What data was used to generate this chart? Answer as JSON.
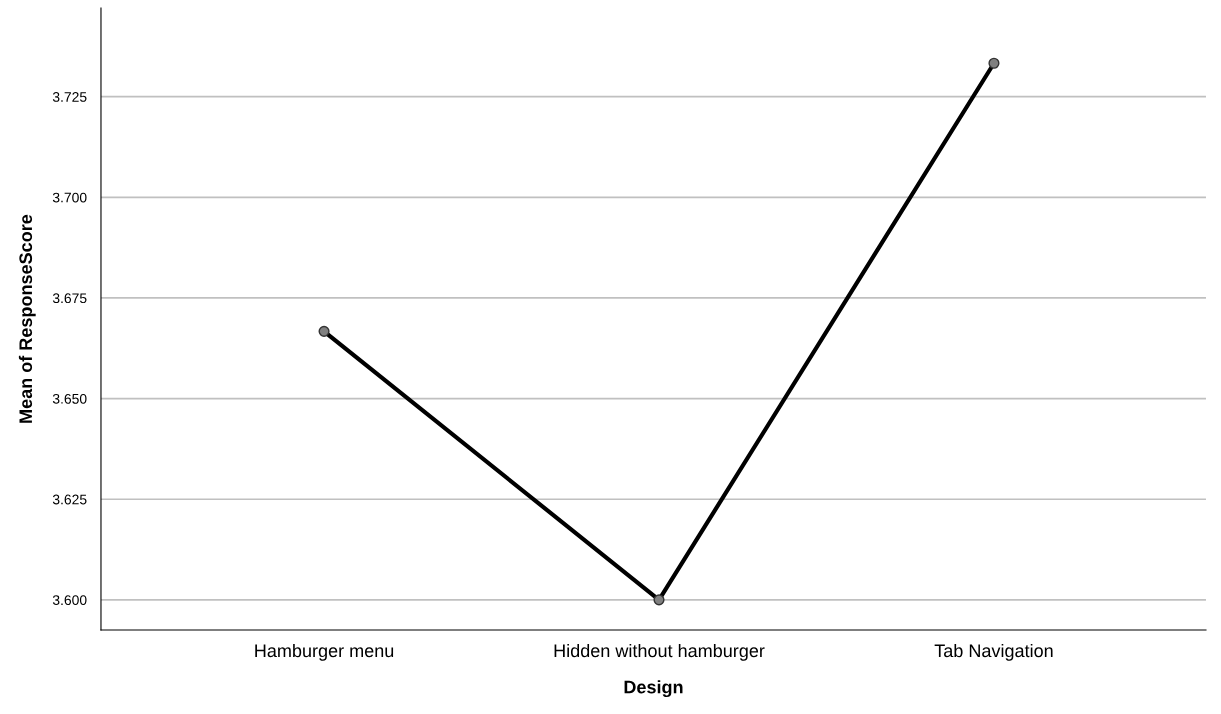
{
  "chart_data": {
    "type": "line",
    "xlabel": "Design",
    "ylabel": "Mean of ResponseScore",
    "categories": [
      "Hamburger menu",
      "Hidden without hamburger",
      "Tab Navigation"
    ],
    "series": [
      {
        "color": "#000000",
        "values": [
          3.6667,
          3.6,
          3.7333
        ]
      }
    ],
    "ylim": [
      3.5925,
      3.747
    ],
    "yticks": [
      {
        "value": 3.6,
        "label": "3.600"
      },
      {
        "value": 3.625,
        "label": "3.625"
      },
      {
        "value": 3.65,
        "label": "3.650"
      },
      {
        "value": 3.675,
        "label": "3.675"
      },
      {
        "value": 3.7,
        "label": "3.700"
      },
      {
        "value": 3.725,
        "label": "3.725"
      }
    ],
    "grid": "y",
    "marker": "circle",
    "line_style": "solid"
  }
}
